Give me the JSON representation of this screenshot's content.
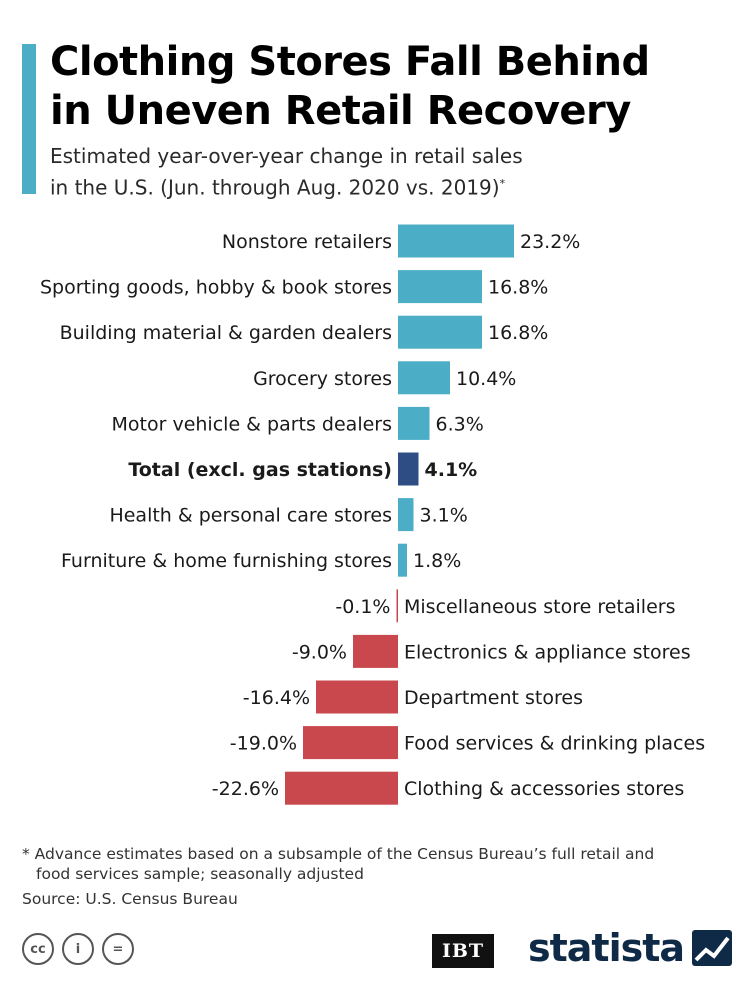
{
  "header": {
    "title_line1": "Clothing Stores Fall Behind",
    "title_line2": "in Uneven Retail Recovery",
    "subtitle_line1": "Estimated year-over-year change in retail sales",
    "subtitle_line2": "in the U.S. (Jun. through Aug. 2020 vs. 2019)",
    "subtitle_mark": "*"
  },
  "chart_data": {
    "type": "bar",
    "orientation": "horizontal",
    "categories": [
      "Nonstore retailers",
      "Sporting goods, hobby & book stores",
      "Building material & garden dealers",
      "Grocery stores",
      "Motor vehicle & parts dealers",
      "Total (excl. gas stations)",
      "Health & personal care stores",
      "Furniture & home furnishing stores",
      "Miscellaneous store retailers",
      "Electronics & appliance stores",
      "Department stores",
      "Food services & drinking places",
      "Clothing & accessories stores"
    ],
    "values": [
      23.2,
      16.8,
      16.8,
      10.4,
      6.3,
      4.1,
      3.1,
      1.8,
      -0.1,
      -9.0,
      -16.4,
      -19.0,
      -22.6
    ],
    "value_labels": [
      "23.2%",
      "16.8%",
      "16.8%",
      "10.4%",
      "6.3%",
      "4.1%",
      "3.1%",
      "1.8%",
      "-0.1%",
      "-9.0%",
      "-16.4%",
      "-19.0%",
      "-22.6%"
    ],
    "highlight_category": "Total (excl. gas stations)",
    "colors": {
      "positive": "#4BAEC6",
      "negative": "#C9484D",
      "highlight": "#2E4D84"
    }
  },
  "footer": {
    "footnote_line1": "* Advance estimates based on a subsample of the Census Bureau’s full retail and",
    "footnote_line2": "food services sample; seasonally adjusted",
    "source": "Source: U.S. Census Bureau",
    "license_icons": [
      "cc-icon",
      "attribution-icon",
      "no-derivatives-icon"
    ],
    "license_glyphs": [
      "cc",
      "i",
      "="
    ],
    "partner_logo": "IBT",
    "brand_logo": "statista"
  }
}
